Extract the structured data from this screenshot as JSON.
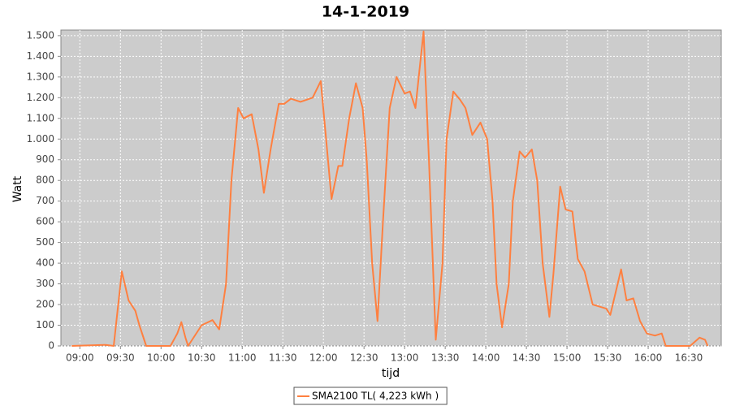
{
  "chart_data": {
    "type": "line",
    "title": "14-1-2019",
    "x_label": "tijd",
    "y_label": "Watt",
    "x": [
      "08:54",
      "09:19",
      "09:25",
      "09:31",
      "09:36",
      "09:41",
      "09:44",
      "09:49",
      "10:07",
      "10:12",
      "10:15",
      "10:18",
      "10:20",
      "10:30",
      "10:38",
      "10:43",
      "10:48",
      "10:52",
      "10:57",
      "11:01",
      "11:07",
      "11:12",
      "11:16",
      "11:21",
      "11:27",
      "11:31",
      "11:36",
      "11:43",
      "11:52",
      "11:58",
      "12:02",
      "12:06",
      "12:11",
      "12:14",
      "12:19",
      "12:24",
      "12:29",
      "12:32",
      "12:36",
      "12:40",
      "12:44",
      "12:49",
      "12:54",
      "13:00",
      "13:04",
      "13:08",
      "13:14",
      "13:18",
      "13:23",
      "13:28",
      "13:31",
      "13:36",
      "13:41",
      "13:45",
      "13:50",
      "13:56",
      "14:01",
      "14:05",
      "14:08",
      "14:12",
      "14:17",
      "14:20",
      "14:25",
      "14:29",
      "14:34",
      "14:38",
      "14:42",
      "14:47",
      "14:50",
      "14:55",
      "14:59",
      "15:04",
      "15:08",
      "15:13",
      "15:19",
      "15:24",
      "15:29",
      "15:32",
      "15:40",
      "15:44",
      "15:49",
      "15:54",
      "15:59",
      "16:05",
      "16:10",
      "16:13",
      "16:31",
      "16:38",
      "16:42",
      "16:44"
    ],
    "series": [
      {
        "name": "SMA2100 TL( 4,223 kWh )",
        "color": "#ff8040",
        "values": [
          0,
          5,
          0,
          360,
          220,
          170,
          100,
          0,
          0,
          60,
          115,
          40,
          0,
          100,
          125,
          80,
          300,
          800,
          1150,
          1100,
          1120,
          950,
          740,
          950,
          1170,
          1170,
          1195,
          1180,
          1200,
          1280,
          1000,
          710,
          870,
          870,
          1100,
          1270,
          1150,
          900,
          400,
          120,
          600,
          1150,
          1300,
          1220,
          1230,
          1150,
          1520,
          900,
          30,
          400,
          1000,
          1230,
          1190,
          1150,
          1020,
          1080,
          1000,
          700,
          300,
          90,
          300,
          700,
          940,
          910,
          950,
          800,
          400,
          140,
          350,
          770,
          660,
          650,
          420,
          360,
          200,
          190,
          180,
          150,
          370,
          220,
          230,
          120,
          60,
          50,
          60,
          0,
          0,
          40,
          30,
          0
        ]
      }
    ],
    "xlim": [
      "08:46",
      "16:54"
    ],
    "xticks": [
      "09:00",
      "09:30",
      "10:00",
      "10:30",
      "11:00",
      "11:30",
      "12:00",
      "12:30",
      "13:00",
      "13:30",
      "14:00",
      "14:30",
      "15:00",
      "15:30",
      "16:00",
      "16:30"
    ],
    "ylim": [
      0,
      1527
    ],
    "yticks": [
      0,
      100,
      200,
      300,
      400,
      500,
      600,
      700,
      800,
      900,
      {
        "value": 1000,
        "label": "1.000"
      },
      {
        "value": 1100,
        "label": "1.100"
      },
      {
        "value": 1200,
        "label": "1.200"
      },
      {
        "value": 1300,
        "label": "1.300"
      },
      {
        "value": 1400,
        "label": "1.400"
      },
      {
        "value": 1500,
        "label": "1.500"
      }
    ],
    "grid": true,
    "legend": "bottom",
    "plot_background": "#cccccc"
  }
}
